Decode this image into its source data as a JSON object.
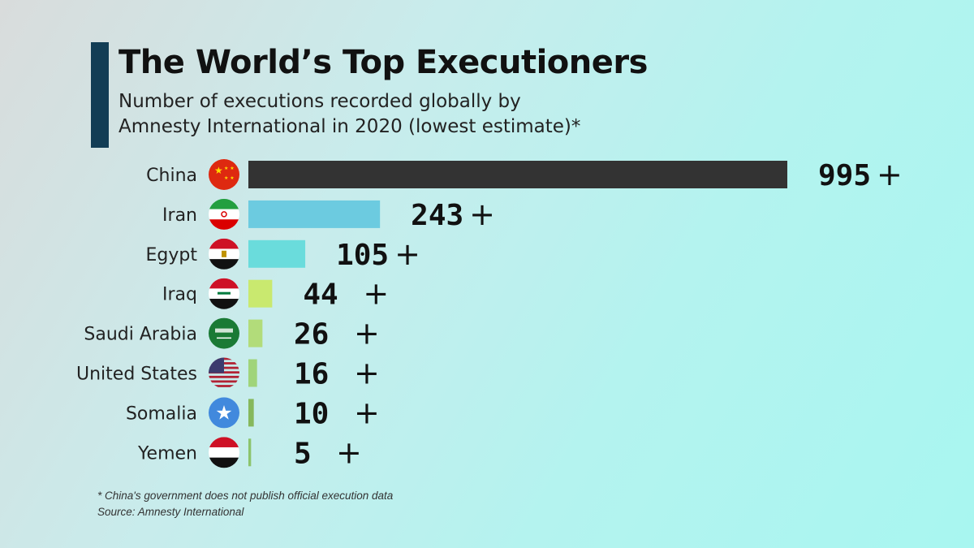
{
  "title": "The World’s Top Executioners",
  "subtitle_line1": "Number of executions recorded globally by",
  "subtitle_line2": "Amnesty International in 2020 (lowest estimate)*",
  "chart_data": {
    "type": "bar",
    "orientation": "horizontal",
    "title": "The World’s Top Executioners",
    "categories": [
      "China",
      "Iran",
      "Egypt",
      "Iraq",
      "Saudi Arabia",
      "United States",
      "Somalia",
      "Yemen"
    ],
    "values": [
      995,
      243,
      105,
      44,
      26,
      16,
      10,
      5
    ],
    "value_suffix": "+",
    "colors": [
      "#333333",
      "#6ccbe0",
      "#6adcdc",
      "#c9e96f",
      "#b2dc7a",
      "#a0d47a",
      "#86b85c",
      "#8cc46c"
    ],
    "flags": [
      "china-flag",
      "iran-flag",
      "egypt-flag",
      "iraq-flag",
      "saudi-arabia-flag",
      "united-states-flag",
      "somalia-flag",
      "yemen-flag"
    ],
    "xlim": [
      0,
      995
    ]
  },
  "footnote": "* China's government does not publish official execution data",
  "source": "Source: Amnesty International"
}
